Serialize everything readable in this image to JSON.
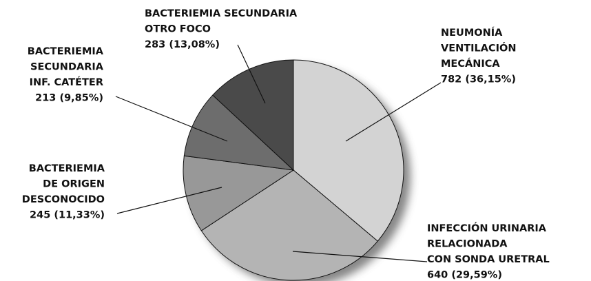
{
  "chart_data": {
    "type": "pie",
    "categories": [
      [
        "NEUMONÍA",
        "VENTILACIÓN",
        "MECÁNICA"
      ],
      [
        "INFECCIÓN URINARIA",
        "RELACIONADA",
        "CON SONDA URETRAL"
      ],
      [
        "BACTERIEMIA",
        "DE ORIGEN",
        "DESCONOCIDO"
      ],
      [
        "BACTERIEMIA",
        "SECUNDARIA",
        "INF. CATÉTER"
      ],
      [
        "BACTERIEMIA SECUNDARIA",
        "OTRO FOCO"
      ]
    ],
    "values": [
      782,
      640,
      245,
      213,
      283
    ],
    "value_labels": [
      "782 (36,15%)",
      "640 (29,59%)",
      "245 (11,33%)",
      "213 (9,85%)",
      "283 (13,08%)"
    ],
    "colors": [
      "#d3d3d3",
      "#b4b4b4",
      "#989898",
      "#6d6d6d",
      "#4a4a4a"
    ]
  }
}
